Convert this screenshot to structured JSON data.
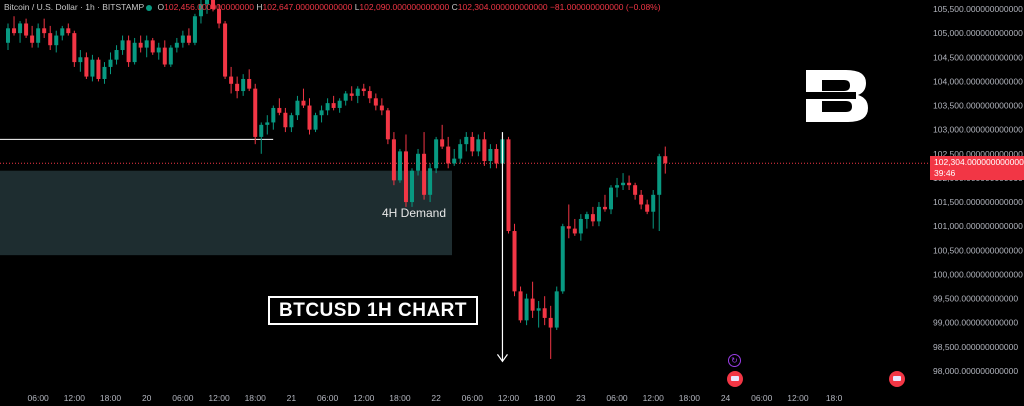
{
  "header": {
    "symbol": "Bitcoin / U.S. Dollar · 1h · BITSTAMP",
    "open_label": "O",
    "open_value": "102,456.000000000000",
    "high_label": "H",
    "high_value": "102,647.000000000000",
    "low_label": "L",
    "low_value": "102,090.000000000000",
    "close_label": "C",
    "close_value": "102,304.000000000000",
    "change": "−81.000000000000 (−0.08%)"
  },
  "annotations": {
    "demand_label": "4H Demand",
    "chart_title": "BTCUSD 1H CHART"
  },
  "current_price": {
    "value": "102,304.000000000000",
    "countdown": "39:46"
  },
  "colors": {
    "up": "#089981",
    "down": "#f23645",
    "background": "#000000",
    "demand_zone": "#1e2d30",
    "axis_text": "#b2b5be",
    "price_line": "#f23645"
  },
  "chart_data": {
    "type": "candlestick",
    "timeframe": "1h",
    "ylim": [
      97800,
      105600
    ],
    "y_ticks": [
      105500,
      105000,
      104500,
      104000,
      103500,
      103000,
      102500,
      102000,
      101500,
      101000,
      100500,
      100000,
      99500,
      99000,
      98500,
      98000
    ],
    "y_tick_labels": [
      "105,500.000000000000",
      "105,000.000000000000",
      "104,500.000000000000",
      "104,000.000000000000",
      "103,500.000000000000",
      "103,000.000000000000",
      "102,500.000000000000",
      "102,000.000000000000",
      "101,500.000000000000",
      "101,000.000000000000",
      "100,500.000000000000",
      "100,000.000000000000",
      "99,500.000000000000",
      "99,000.000000000000",
      "98,500.000000000000",
      "98,000.000000000000"
    ],
    "x_ticks": [
      {
        "bar": 5,
        "label": "06:00"
      },
      {
        "bar": 11,
        "label": "12:00"
      },
      {
        "bar": 17,
        "label": "18:00"
      },
      {
        "bar": 23,
        "label": "20"
      },
      {
        "bar": 29,
        "label": "06:00"
      },
      {
        "bar": 35,
        "label": "12:00"
      },
      {
        "bar": 41,
        "label": "18:00"
      },
      {
        "bar": 47,
        "label": "21"
      },
      {
        "bar": 53,
        "label": "06:00"
      },
      {
        "bar": 59,
        "label": "12:00"
      },
      {
        "bar": 65,
        "label": "18:00"
      },
      {
        "bar": 71,
        "label": "22"
      },
      {
        "bar": 77,
        "label": "06:00"
      },
      {
        "bar": 83,
        "label": "12:00"
      },
      {
        "bar": 89,
        "label": "18:00"
      },
      {
        "bar": 95,
        "label": "23"
      },
      {
        "bar": 101,
        "label": "06:00"
      },
      {
        "bar": 107,
        "label": "12:00"
      },
      {
        "bar": 113,
        "label": "18:00"
      },
      {
        "bar": 119,
        "label": "24"
      },
      {
        "bar": 125,
        "label": "06:00"
      },
      {
        "bar": 131,
        "label": "12:00"
      },
      {
        "bar": 137,
        "label": "18:0"
      }
    ],
    "demand_zone": [
      100400,
      102150
    ],
    "resistance_line": {
      "price": 102800,
      "from_bar": 0,
      "to_bar": 39
    },
    "arrow": {
      "bar": 82,
      "from": 102950,
      "to": 98200
    },
    "ohlc": [
      [
        104800,
        105200,
        104650,
        105100
      ],
      [
        105100,
        105350,
        104950,
        105000
      ],
      [
        105000,
        105250,
        104800,
        105200
      ],
      [
        105200,
        105300,
        104900,
        104950
      ],
      [
        104950,
        105150,
        104700,
        104800
      ],
      [
        104800,
        105200,
        104700,
        105100
      ],
      [
        105100,
        105300,
        104900,
        105000
      ],
      [
        105000,
        105150,
        104650,
        104750
      ],
      [
        104750,
        105050,
        104600,
        104950
      ],
      [
        104950,
        105150,
        104850,
        105100
      ],
      [
        105100,
        105200,
        104950,
        105000
      ],
      [
        105000,
        105050,
        104300,
        104400
      ],
      [
        104400,
        104650,
        104200,
        104500
      ],
      [
        104500,
        104600,
        104050,
        104100
      ],
      [
        104100,
        104550,
        104000,
        104450
      ],
      [
        104450,
        104500,
        104000,
        104050
      ],
      [
        104050,
        104400,
        103950,
        104300
      ],
      [
        104300,
        104600,
        104150,
        104450
      ],
      [
        104450,
        104750,
        104350,
        104650
      ],
      [
        104650,
        104950,
        104550,
        104850
      ],
      [
        104850,
        104950,
        104300,
        104400
      ],
      [
        104400,
        104900,
        104350,
        104800
      ],
      [
        104800,
        104950,
        104600,
        104700
      ],
      [
        104700,
        104950,
        104500,
        104850
      ],
      [
        104850,
        104900,
        104550,
        104600
      ],
      [
        104600,
        104800,
        104450,
        104700
      ],
      [
        104700,
        104850,
        104300,
        104350
      ],
      [
        104350,
        104750,
        104300,
        104700
      ],
      [
        104700,
        104900,
        104600,
        104800
      ],
      [
        104800,
        105050,
        104700,
        104950
      ],
      [
        104950,
        105100,
        104750,
        104800
      ],
      [
        104800,
        105400,
        104750,
        105350
      ],
      [
        105350,
        105700,
        105200,
        105600
      ],
      [
        105600,
        105800,
        105400,
        105700
      ],
      [
        105700,
        105800,
        105450,
        105500
      ],
      [
        105500,
        105600,
        105100,
        105200
      ],
      [
        105200,
        105250,
        104050,
        104100
      ],
      [
        104100,
        104300,
        103750,
        103950
      ],
      [
        103950,
        104100,
        103650,
        103800
      ],
      [
        103800,
        104150,
        103700,
        104050
      ],
      [
        104050,
        104250,
        103800,
        103850
      ],
      [
        103850,
        103950,
        102700,
        102850
      ],
      [
        102850,
        103150,
        102500,
        103100
      ],
      [
        103100,
        103300,
        102900,
        103150
      ],
      [
        103150,
        103500,
        103000,
        103450
      ],
      [
        103450,
        103650,
        103300,
        103350
      ],
      [
        103350,
        103450,
        102950,
        103050
      ],
      [
        103050,
        103350,
        102950,
        103300
      ],
      [
        103300,
        103700,
        103200,
        103600
      ],
      [
        103600,
        103850,
        103450,
        103500
      ],
      [
        103500,
        103650,
        102900,
        103000
      ],
      [
        103000,
        103350,
        102950,
        103300
      ],
      [
        103300,
        103500,
        103150,
        103400
      ],
      [
        103400,
        103650,
        103300,
        103550
      ],
      [
        103550,
        103700,
        103400,
        103450
      ],
      [
        103450,
        103650,
        103350,
        103600
      ],
      [
        103600,
        103800,
        103500,
        103750
      ],
      [
        103750,
        103900,
        103600,
        103700
      ],
      [
        103700,
        103900,
        103550,
        103850
      ],
      [
        103850,
        103950,
        103700,
        103800
      ],
      [
        103800,
        103900,
        103550,
        103650
      ],
      [
        103650,
        103750,
        103400,
        103500
      ],
      [
        103500,
        103650,
        103300,
        103400
      ],
      [
        103400,
        103450,
        102700,
        102800
      ],
      [
        102800,
        102950,
        101850,
        101950
      ],
      [
        101950,
        102600,
        101900,
        102550
      ],
      [
        102550,
        102900,
        101400,
        101500
      ],
      [
        101500,
        102200,
        101400,
        102150
      ],
      [
        102150,
        102600,
        102050,
        102500
      ],
      [
        102500,
        102950,
        101550,
        101650
      ],
      [
        101650,
        102300,
        101500,
        102200
      ],
      [
        102200,
        102850,
        102100,
        102800
      ],
      [
        102800,
        103100,
        102600,
        102650
      ],
      [
        102650,
        102850,
        102200,
        102300
      ],
      [
        102300,
        102600,
        102250,
        102400
      ],
      [
        102400,
        102800,
        102300,
        102700
      ],
      [
        102700,
        102950,
        102550,
        102850
      ],
      [
        102850,
        102950,
        102450,
        102550
      ],
      [
        102550,
        102900,
        102450,
        102800
      ],
      [
        102800,
        102950,
        102250,
        102350
      ],
      [
        102350,
        102700,
        102200,
        102600
      ],
      [
        102600,
        102700,
        102200,
        102300
      ],
      [
        102300,
        102850,
        102250,
        102800
      ],
      [
        102800,
        102850,
        100850,
        100900
      ],
      [
        100900,
        101050,
        99550,
        99650
      ],
      [
        99650,
        99750,
        99000,
        99050
      ],
      [
        99050,
        99600,
        98950,
        99500
      ],
      [
        99500,
        99850,
        99100,
        99250
      ],
      [
        99250,
        99450,
        98900,
        99300
      ],
      [
        99300,
        99550,
        98950,
        99100
      ],
      [
        99100,
        99350,
        98250,
        98900
      ],
      [
        98900,
        99750,
        98850,
        99650
      ],
      [
        99650,
        101050,
        99600,
        101000
      ],
      [
        101000,
        101450,
        100750,
        100950
      ],
      [
        100950,
        101150,
        100800,
        100850
      ],
      [
        100850,
        101250,
        100700,
        101150
      ],
      [
        101150,
        101300,
        100950,
        101250
      ],
      [
        101250,
        101400,
        101000,
        101100
      ],
      [
        101100,
        101500,
        101000,
        101400
      ],
      [
        101400,
        101650,
        101300,
        101350
      ],
      [
        101350,
        101850,
        101250,
        101800
      ],
      [
        101800,
        102000,
        101600,
        101850
      ],
      [
        101850,
        102100,
        101750,
        101900
      ],
      [
        101900,
        102050,
        101750,
        101850
      ],
      [
        101850,
        101900,
        101550,
        101650
      ],
      [
        101650,
        101750,
        101350,
        101450
      ],
      [
        101450,
        101550,
        101250,
        101300
      ],
      [
        101300,
        101750,
        100950,
        101650
      ],
      [
        101650,
        102500,
        100900,
        102450
      ],
      [
        102450,
        102650,
        102090,
        102304
      ]
    ]
  }
}
